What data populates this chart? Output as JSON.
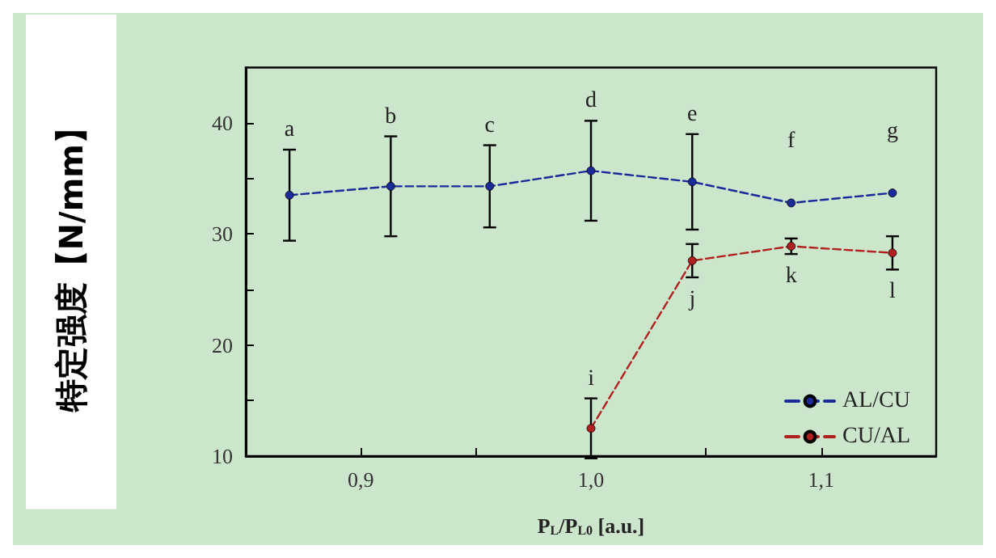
{
  "chart_data": {
    "type": "line",
    "xlabel": "P$_{L}$/P$_{L0}$ [a.u.]",
    "ylabel": "特定强度【N/mm】",
    "xlim": [
      0.85,
      1.15
    ],
    "xticks": [
      {
        "value": 0.9,
        "label": "0,9"
      },
      {
        "value": 0.95,
        "label": null
      },
      {
        "value": 1.0,
        "label": "1,0"
      },
      {
        "value": 1.05,
        "label": null
      },
      {
        "value": 1.1,
        "label": "1,1"
      }
    ],
    "ylim": [
      10,
      45
    ],
    "yticks": [
      10,
      {
        "value": 15,
        "label": null
      },
      20,
      {
        "value": 25,
        "label": null
      },
      30,
      {
        "value": 35,
        "label": null
      },
      40
    ],
    "series": [
      {
        "name": "AL/CU",
        "color": "#1a2a9a",
        "x": [
          0.869,
          0.913,
          0.956,
          1.0,
          1.044,
          1.087,
          1.131
        ],
        "values": [
          33.5,
          34.3,
          34.3,
          35.7,
          34.7,
          32.8,
          33.7
        ],
        "errors": [
          4.1,
          4.5,
          3.7,
          4.5,
          4.3,
          null,
          null
        ]
      },
      {
        "name": "CU/AL",
        "color": "#b02020",
        "x": [
          1.0,
          1.044,
          1.087,
          1.131
        ],
        "values": [
          12.5,
          27.6,
          28.9,
          28.3
        ],
        "errors": [
          2.7,
          1.5,
          0.7,
          1.5
        ]
      }
    ],
    "annotations": [
      {
        "text": "a",
        "x": 0.869,
        "y": 33.5
      },
      {
        "text": "b",
        "x": 0.913,
        "y": 34.3
      },
      {
        "text": "c",
        "x": 0.956,
        "y": 34.3
      },
      {
        "text": "d",
        "x": 1.0,
        "y": 35.7
      },
      {
        "text": "e",
        "x": 1.044,
        "y": 34.7
      },
      {
        "text": "f",
        "x": 1.087,
        "y": 32.8
      },
      {
        "text": "g",
        "x": 1.131,
        "y": 33.7
      },
      {
        "text": "i",
        "x": 1.0,
        "y": 12.5
      },
      {
        "text": "j",
        "x": 1.044,
        "y": 27.6
      },
      {
        "text": "k",
        "x": 1.087,
        "y": 28.9
      },
      {
        "text": "l",
        "x": 1.131,
        "y": 28.3
      }
    ],
    "legend": "bottom right",
    "marker": "circle",
    "line_style": "dashed",
    "grid": false
  }
}
